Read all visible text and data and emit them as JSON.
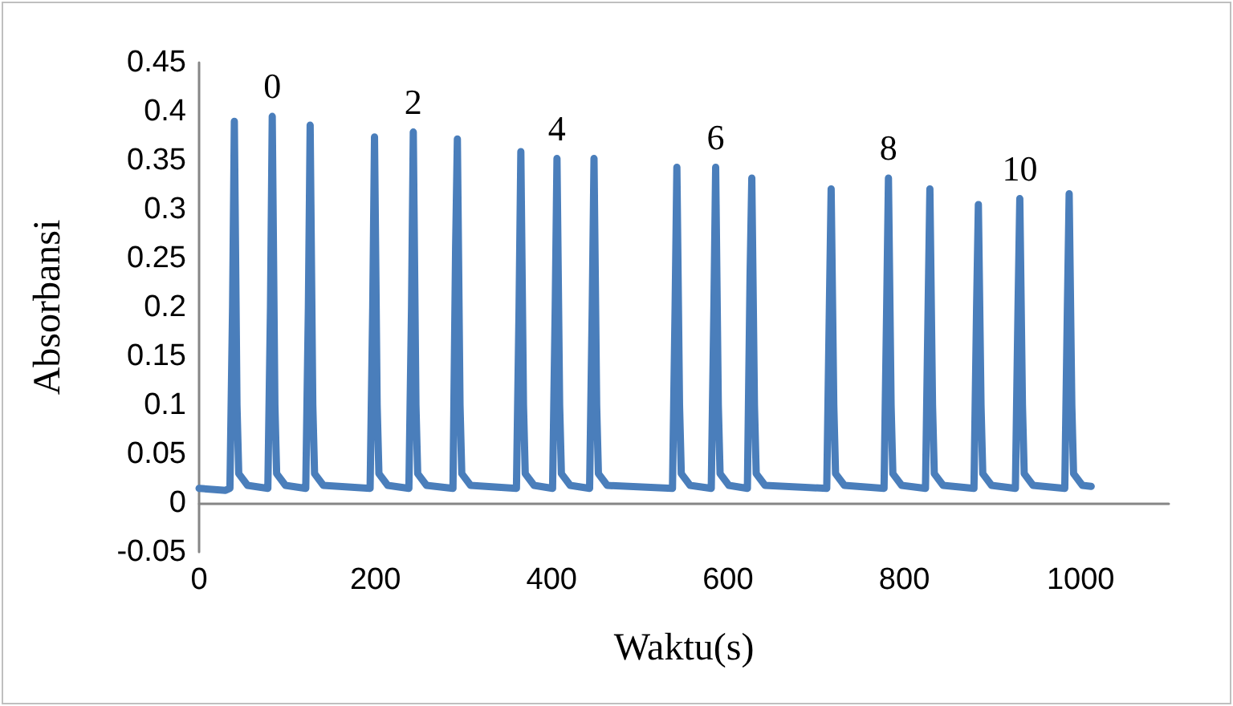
{
  "chart_data": {
    "type": "line",
    "xlabel": "Waktu(s)",
    "ylabel": "Absorbansi",
    "xlim": [
      0,
      1100
    ],
    "xticks": [
      0,
      200,
      400,
      600,
      800,
      1000
    ],
    "ylim": [
      -0.05,
      0.45
    ],
    "yticks": [
      -0.05,
      0,
      0.05,
      0.1,
      0.15,
      0.2,
      0.25,
      0.3,
      0.35,
      0.4,
      0.45
    ],
    "grid": false,
    "marker": "none",
    "line_style": "solid",
    "series": [
      {
        "color": "#4a7ebb",
        "x": [
          0,
          30,
          35,
          38,
          40,
          43,
          45,
          55,
          78,
          81,
          83,
          86,
          88,
          98,
          121,
          124,
          126,
          129,
          131,
          141,
          194,
          197,
          199,
          202,
          204,
          214,
          238,
          241,
          243,
          246,
          248,
          258,
          288,
          291,
          293,
          296,
          298,
          308,
          360,
          363,
          365,
          368,
          370,
          380,
          401,
          404,
          406,
          409,
          411,
          421,
          443,
          446,
          448,
          451,
          453,
          463,
          537,
          540,
          542,
          545,
          547,
          557,
          581,
          584,
          586,
          589,
          591,
          601,
          622,
          625,
          627,
          630,
          632,
          642,
          712,
          715,
          717,
          720,
          722,
          732,
          777,
          780,
          782,
          785,
          787,
          797,
          824,
          827,
          829,
          832,
          834,
          844,
          879,
          882,
          884,
          887,
          889,
          899,
          926,
          929,
          931,
          934,
          936,
          946,
          982,
          985,
          987,
          990,
          992,
          1002,
          1012
        ],
        "values": [
          0.015,
          0.013,
          0.015,
          0.2,
          0.39,
          0.1,
          0.03,
          0.018,
          0.015,
          0.2,
          0.395,
          0.1,
          0.03,
          0.018,
          0.015,
          0.2,
          0.386,
          0.1,
          0.03,
          0.018,
          0.015,
          0.2,
          0.374,
          0.1,
          0.03,
          0.018,
          0.015,
          0.2,
          0.379,
          0.1,
          0.03,
          0.018,
          0.015,
          0.26,
          0.372,
          0.1,
          0.03,
          0.018,
          0.015,
          0.2,
          0.359,
          0.1,
          0.03,
          0.018,
          0.015,
          0.2,
          0.352,
          0.1,
          0.03,
          0.018,
          0.015,
          0.2,
          0.352,
          0.1,
          0.03,
          0.018,
          0.015,
          0.2,
          0.343,
          0.1,
          0.03,
          0.018,
          0.015,
          0.2,
          0.343,
          0.1,
          0.03,
          0.018,
          0.015,
          0.23,
          0.332,
          0.1,
          0.03,
          0.018,
          0.015,
          0.2,
          0.321,
          0.1,
          0.03,
          0.018,
          0.015,
          0.2,
          0.332,
          0.1,
          0.03,
          0.018,
          0.015,
          0.2,
          0.321,
          0.1,
          0.03,
          0.018,
          0.015,
          0.2,
          0.305,
          0.1,
          0.03,
          0.018,
          0.015,
          0.2,
          0.311,
          0.1,
          0.03,
          0.018,
          0.015,
          0.2,
          0.316,
          0.1,
          0.03,
          0.018,
          0.017
        ]
      }
    ],
    "annotations": [
      {
        "text": "0",
        "x": 83,
        "y": 0.395
      },
      {
        "text": "2",
        "x": 243,
        "y": 0.379
      },
      {
        "text": "4",
        "x": 406,
        "y": 0.352
      },
      {
        "text": "6",
        "x": 586,
        "y": 0.343
      },
      {
        "text": "8",
        "x": 782,
        "y": 0.332
      },
      {
        "text": "10",
        "x": 931,
        "y": 0.311
      }
    ]
  }
}
